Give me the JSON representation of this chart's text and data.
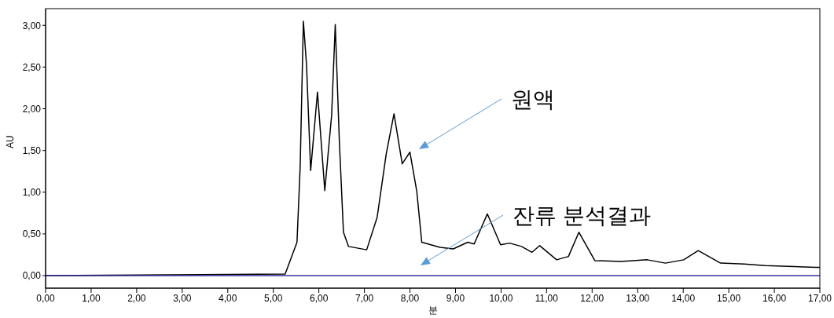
{
  "chart_data": {
    "type": "line",
    "ylabel": "AU",
    "xlabel": "분",
    "xlim": [
      0,
      17
    ],
    "xticks": [
      {
        "value": 0,
        "label": "0,00"
      },
      {
        "value": 1,
        "label": "1,00"
      },
      {
        "value": 2,
        "label": "2,00"
      },
      {
        "value": 3,
        "label": "3,00"
      },
      {
        "value": 4,
        "label": "4,00"
      },
      {
        "value": 5,
        "label": "5,00"
      },
      {
        "value": 6,
        "label": "6,00"
      },
      {
        "value": 7,
        "label": "7,00"
      },
      {
        "value": 8,
        "label": "8,00"
      },
      {
        "value": 9,
        "label": "9,00"
      },
      {
        "value": 10,
        "label": "10,00"
      },
      {
        "value": 11,
        "label": "11,00"
      },
      {
        "value": 12,
        "label": "12,00"
      },
      {
        "value": 13,
        "label": "13,00"
      },
      {
        "value": 14,
        "label": "14,00"
      },
      {
        "value": 15,
        "label": "15,00"
      },
      {
        "value": 16,
        "label": "16,00"
      },
      {
        "value": 17,
        "label": "17,00"
      }
    ],
    "ylim": [
      -0.15,
      3.2
    ],
    "yticks": [
      {
        "value": 0,
        "label": "0,00"
      },
      {
        "value": 0.5,
        "label": "0,50"
      },
      {
        "value": 1,
        "label": "1,00"
      },
      {
        "value": 1.5,
        "label": "1,50"
      },
      {
        "value": 2,
        "label": "2,00"
      },
      {
        "value": 2.5,
        "label": "2,50"
      },
      {
        "value": 3,
        "label": "3,00"
      }
    ],
    "grid": false,
    "marker": "none",
    "line_style": "solid",
    "series": [
      {
        "color": "#000000",
        "x": [
          0,
          5.26,
          5.52,
          5.59,
          5.66,
          5.73,
          5.82,
          5.97,
          6.13,
          6.28,
          6.36,
          6.45,
          6.54,
          6.65,
          7.05,
          7.28,
          7.48,
          7.65,
          7.83,
          8.0,
          8.15,
          8.26,
          8.66,
          8.95,
          9.27,
          9.41,
          9.7,
          9.99,
          10.19,
          10.45,
          10.68,
          10.85,
          11.22,
          11.48,
          11.71,
          12.06,
          12.63,
          13.21,
          13.61,
          14.01,
          14.33,
          14.82,
          15.34,
          15.8,
          16.92,
          17
        ],
        "values": [
          0,
          0.02,
          0.4,
          1.31,
          3.05,
          2.52,
          1.26,
          2.2,
          1.02,
          1.92,
          3.01,
          1.61,
          0.52,
          0.35,
          0.31,
          0.7,
          1.46,
          1.94,
          1.34,
          1.48,
          1.01,
          0.4,
          0.34,
          0.32,
          0.4,
          0.38,
          0.74,
          0.37,
          0.39,
          0.35,
          0.28,
          0.36,
          0.19,
          0.23,
          0.52,
          0.18,
          0.17,
          0.19,
          0.15,
          0.19,
          0.3,
          0.15,
          0.14,
          0.12,
          0.1,
          0.1
        ]
      },
      {
        "color": "#3030a0",
        "x": [
          0,
          17
        ],
        "values": [
          0,
          0
        ]
      }
    ],
    "annotations": [
      "원액",
      "잔류 분석결과"
    ]
  }
}
